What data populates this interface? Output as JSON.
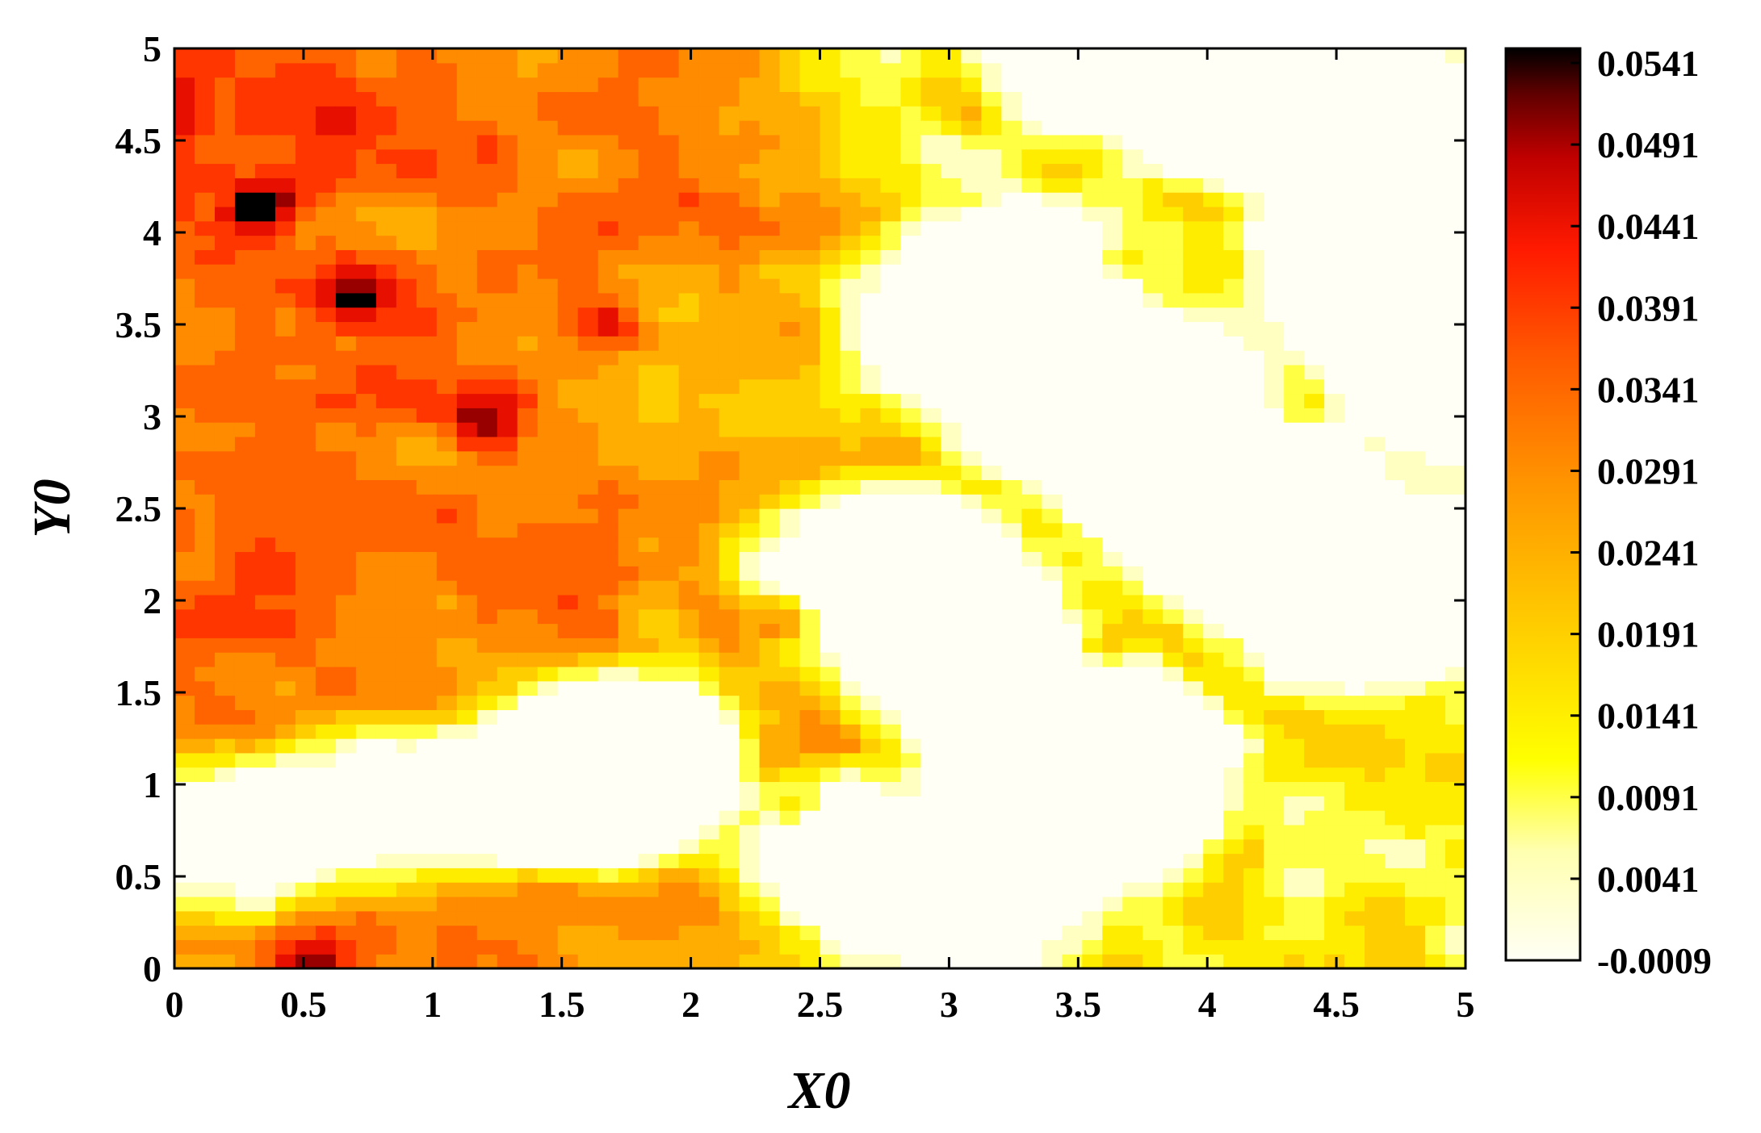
{
  "chart_data": {
    "type": "heatmap",
    "subtype": "filled-contour",
    "xlabel": "X0",
    "ylabel": "Y0",
    "xlim": [
      0,
      5
    ],
    "ylim": [
      0,
      5
    ],
    "x_ticks": [
      "0",
      "0.5",
      "1",
      "1.5",
      "2",
      "2.5",
      "3",
      "3.5",
      "4",
      "4.5",
      "5"
    ],
    "y_ticks": [
      "0",
      "0.5",
      "1",
      "1.5",
      "2",
      "2.5",
      "3",
      "3.5",
      "4",
      "4.5",
      "5"
    ],
    "colorbar": {
      "colormap": "hot (reversed)",
      "range": [
        -0.0009,
        0.0541
      ],
      "tick_labels": [
        "0.0541",
        "0.0491",
        "0.0441",
        "0.0391",
        "0.0341",
        "0.0291",
        "0.0241",
        "0.0191",
        "0.0141",
        "0.0091",
        "0.0041",
        "-0.0009"
      ],
      "colors": {
        "low": "#fffff5",
        "mid_low": "#ffff00",
        "mid": "#ff9a00",
        "mid_high": "#ff1a00",
        "high": "#000000"
      }
    },
    "grid": false,
    "contour_lines": true,
    "contour_line_color": "#000000",
    "legend": "colorbar right"
  }
}
